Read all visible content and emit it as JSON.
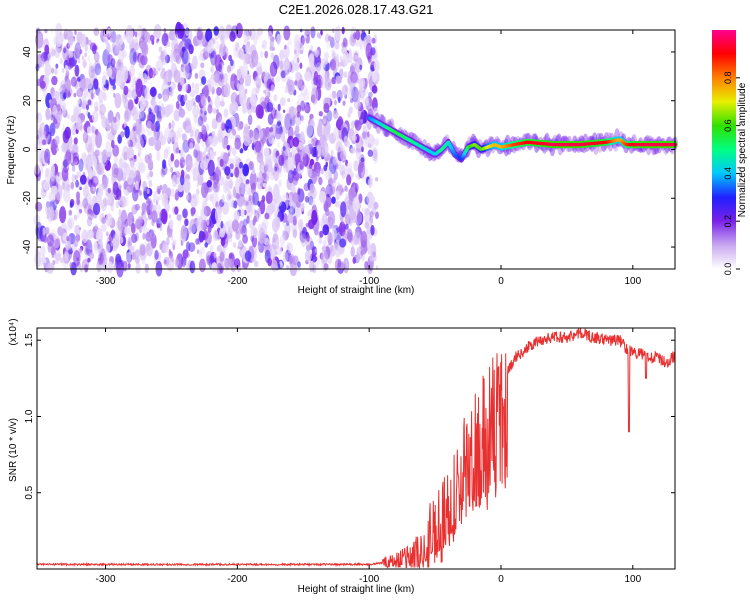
{
  "title": "C2E1.2026.028.17.43.G21",
  "chart_data": [
    {
      "type": "heatmap",
      "title": "C2E1.2026.028.17.43.G21",
      "xlabel": "Height of straight line (km)",
      "ylabel": "Frequency (Hz)",
      "xlim": [
        -352,
        132
      ],
      "ylim": [
        -49,
        49
      ],
      "xticks": [
        -300,
        -200,
        -100,
        0,
        100
      ],
      "yticks": [
        -40,
        -20,
        0,
        20,
        40
      ],
      "noise_region_x": [
        -352,
        -94
      ],
      "signal_track": {
        "x": [
          -100,
          -90,
          -80,
          -70,
          -60,
          -50,
          -45,
          -40,
          -35,
          -30,
          -25,
          -20,
          -15,
          -10,
          -5,
          0,
          10,
          20,
          40,
          60,
          80,
          90,
          95,
          100,
          110,
          120,
          132
        ],
        "y": [
          13,
          10,
          7,
          4,
          1,
          -2,
          0,
          3,
          -2,
          -4,
          1,
          2,
          0,
          1,
          2,
          1,
          2,
          3,
          2,
          2,
          3,
          4,
          2,
          2,
          2,
          2,
          2
        ],
        "amplitude": [
          0.35,
          0.45,
          0.55,
          0.5,
          0.45,
          0.4,
          0.5,
          0.45,
          0.35,
          0.3,
          0.55,
          0.65,
          0.6,
          0.7,
          0.75,
          0.75,
          0.85,
          0.9,
          0.95,
          0.95,
          0.9,
          0.75,
          0.85,
          0.92,
          0.95,
          0.95,
          0.95
        ]
      },
      "colorbar": {
        "label": "Normalized spectral amplitude",
        "range": [
          0,
          1
        ],
        "ticks": [
          0.0,
          0.2,
          0.4,
          0.6,
          0.8
        ],
        "tick_labels": [
          "0.0",
          "0.2",
          "0.4",
          "0.6",
          "0.8"
        ],
        "colors": [
          "#ffffff",
          "#c8a8f0",
          "#7a22e8",
          "#2020ff",
          "#00c8ff",
          "#00ff80",
          "#30e000",
          "#e8f000",
          "#ff8000",
          "#ff0000",
          "#ff0090"
        ]
      }
    },
    {
      "type": "line",
      "xlabel": "Height of straight line (km)",
      "ylabel": "SNR (10 * v/v)",
      "exponent_label": "(x10⁴)",
      "xlim": [
        -352,
        132
      ],
      "ylim": [
        0,
        1.58
      ],
      "xticks": [
        -300,
        -200,
        -100,
        0,
        100
      ],
      "yticks": [
        0.5,
        1.0,
        1.5
      ],
      "ytick_labels": [
        "0.5",
        "1.0",
        "1.5"
      ],
      "color": "#e83030",
      "series": [
        {
          "name": "SNR",
          "x": [
            -352,
            -200,
            -110,
            -100,
            -90,
            -80,
            -70,
            -60,
            -55,
            -50,
            -45,
            -40,
            -35,
            -30,
            -25,
            -20,
            -15,
            -10,
            -5,
            0,
            5,
            10,
            20,
            30,
            40,
            50,
            60,
            70,
            80,
            90,
            95,
            100,
            110,
            120,
            125,
            132
          ],
          "y": [
            0.03,
            0.03,
            0.03,
            0.03,
            0.04,
            0.05,
            0.06,
            0.1,
            0.15,
            0.22,
            0.3,
            0.38,
            0.5,
            0.7,
            0.85,
            0.95,
            1.0,
            1.05,
            1.15,
            1.22,
            1.3,
            1.38,
            1.45,
            1.5,
            1.52,
            1.52,
            1.55,
            1.52,
            1.5,
            1.5,
            1.45,
            1.42,
            1.4,
            1.38,
            1.35,
            1.4
          ]
        }
      ],
      "dips": [
        {
          "x": 97,
          "y": 0.9
        },
        {
          "x": 110,
          "y": 1.25
        }
      ]
    }
  ]
}
